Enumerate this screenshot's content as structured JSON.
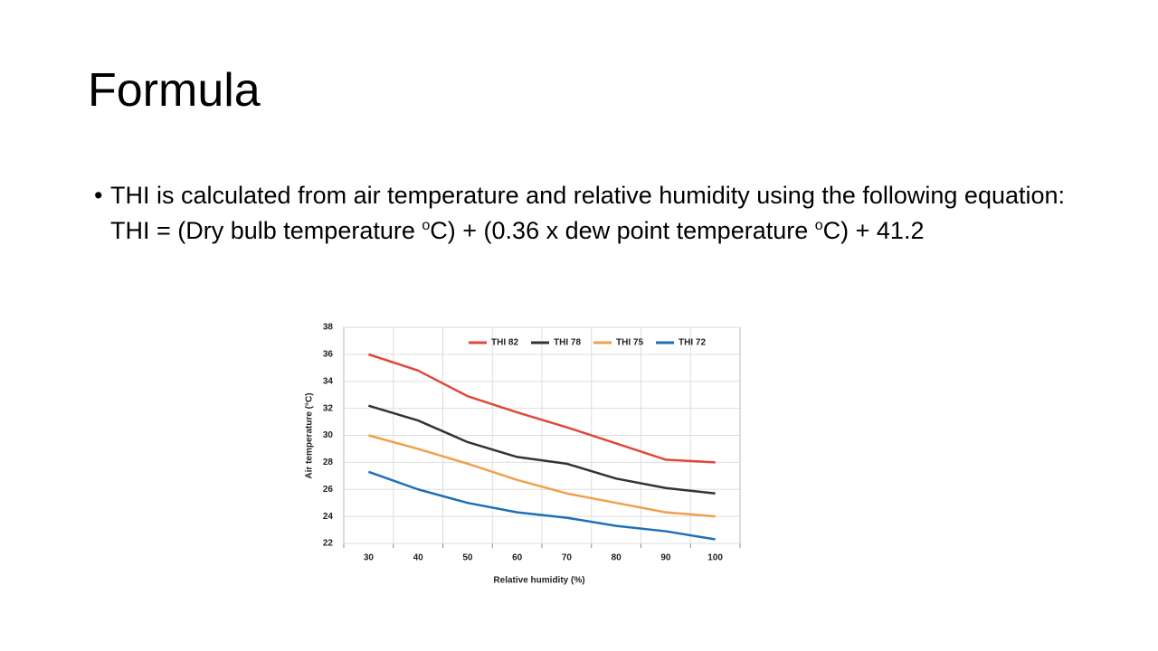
{
  "slide": {
    "title": "Formula",
    "bullet": [
      "THI is calculated from air temperature and relative humidity using the following equation:",
      "THI = (Dry bulb temperature ",
      "o",
      "C) + (0.36 x dew point temperature ",
      "o",
      "C) + 41.2"
    ]
  },
  "chart_data": {
    "type": "line",
    "x_label": "Relative humidity (%)",
    "y_label": "Air temperature (°C)",
    "categories": [
      "30",
      "40",
      "50",
      "60",
      "70",
      "80",
      "90",
      "100"
    ],
    "series": [
      {
        "name": "THI 82",
        "color": "#e0483a",
        "values": [
          36.0,
          34.8,
          32.9,
          31.7,
          30.6,
          29.4,
          28.2,
          28.0
        ]
      },
      {
        "name": "THI 78",
        "color": "#333333",
        "values": [
          32.2,
          31.1,
          29.5,
          28.4,
          27.9,
          26.8,
          26.1,
          25.7
        ]
      },
      {
        "name": "THI 75",
        "color": "#f0a04b",
        "values": [
          30.0,
          29.0,
          27.9,
          26.7,
          25.7,
          25.0,
          24.3,
          24.0
        ]
      },
      {
        "name": "THI 72",
        "color": "#1f6fb5",
        "values": [
          27.3,
          26.0,
          25.0,
          24.3,
          23.9,
          23.3,
          22.9,
          22.3
        ]
      }
    ],
    "ylim": [
      22,
      38
    ],
    "yticks": [
      22,
      24,
      26,
      28,
      30,
      32,
      34,
      36,
      38
    ],
    "grid": true,
    "legend": "top-right"
  }
}
